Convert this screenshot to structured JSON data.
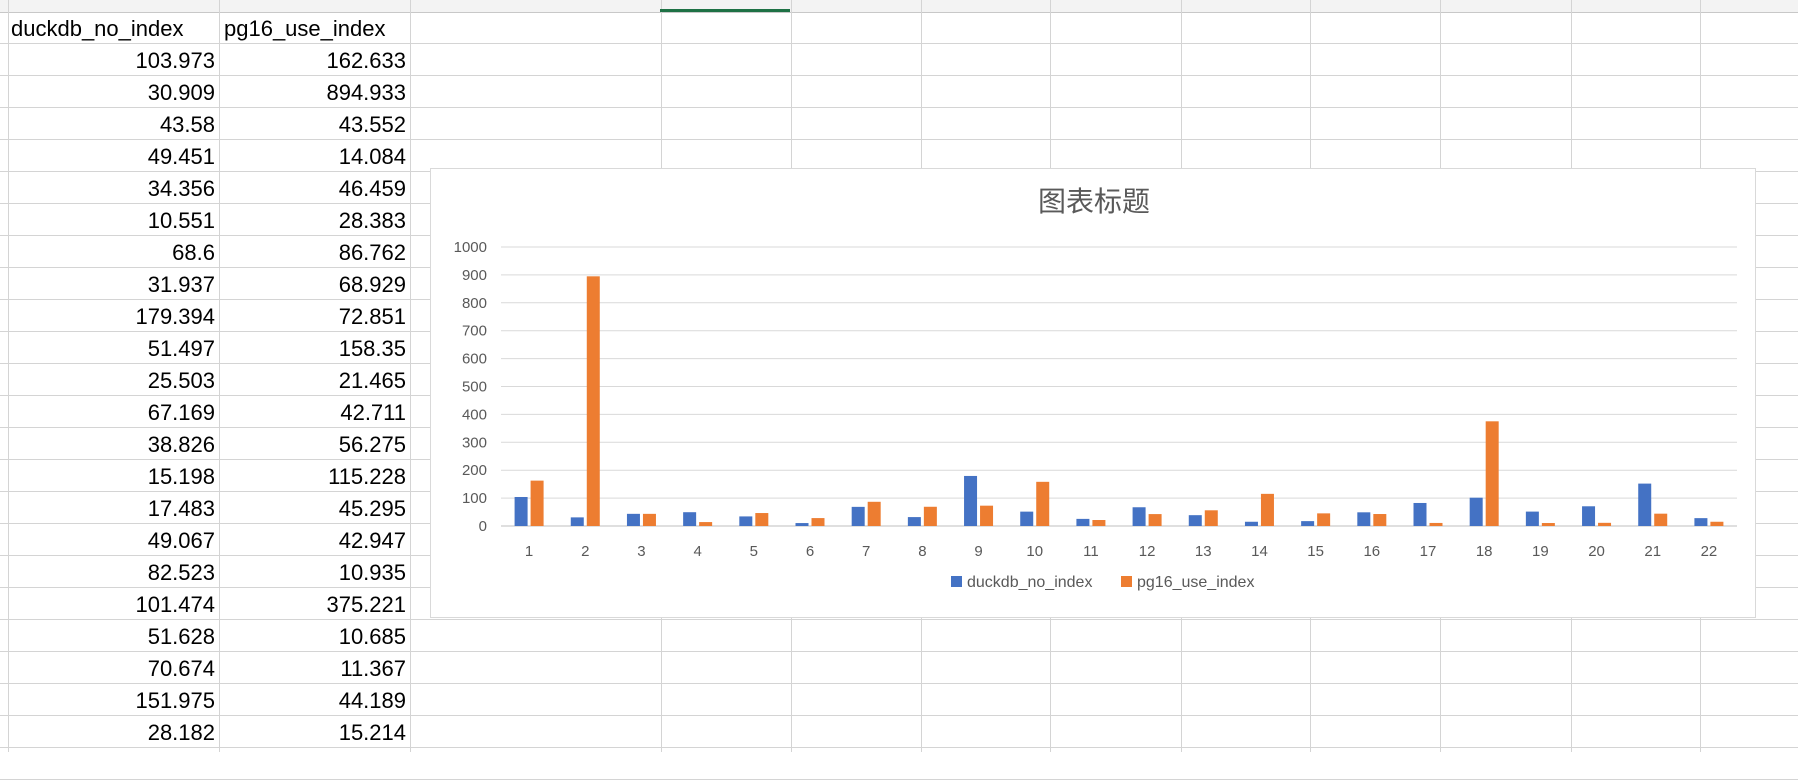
{
  "sheet": {
    "headers": [
      "duckdb_no_index",
      "pg16_use_index"
    ],
    "rows": [
      [
        "103.973",
        "162.633"
      ],
      [
        "30.909",
        "894.933"
      ],
      [
        "43.58",
        "43.552"
      ],
      [
        "49.451",
        "14.084"
      ],
      [
        "34.356",
        "46.459"
      ],
      [
        "10.551",
        "28.383"
      ],
      [
        "68.6",
        "86.762"
      ],
      [
        "31.937",
        "68.929"
      ],
      [
        "179.394",
        "72.851"
      ],
      [
        "51.497",
        "158.35"
      ],
      [
        "25.503",
        "21.465"
      ],
      [
        "67.169",
        "42.711"
      ],
      [
        "38.826",
        "56.275"
      ],
      [
        "15.198",
        "115.228"
      ],
      [
        "17.483",
        "45.295"
      ],
      [
        "49.067",
        "42.947"
      ],
      [
        "82.523",
        "10.935"
      ],
      [
        "101.474",
        "375.221"
      ],
      [
        "51.628",
        "10.685"
      ],
      [
        "70.674",
        "11.367"
      ],
      [
        "151.975",
        "44.189"
      ],
      [
        "28.182",
        "15.214"
      ]
    ]
  },
  "chart_data": {
    "type": "bar",
    "title": "图表标题",
    "categories": [
      "1",
      "2",
      "3",
      "4",
      "5",
      "6",
      "7",
      "8",
      "9",
      "10",
      "11",
      "12",
      "13",
      "14",
      "15",
      "16",
      "17",
      "18",
      "19",
      "20",
      "21",
      "22"
    ],
    "series": [
      {
        "name": "duckdb_no_index",
        "color": "#4472c4",
        "values": [
          103.973,
          30.909,
          43.58,
          49.451,
          34.356,
          10.551,
          68.6,
          31.937,
          179.394,
          51.497,
          25.503,
          67.169,
          38.826,
          15.198,
          17.483,
          49.067,
          82.523,
          101.474,
          51.628,
          70.674,
          151.975,
          28.182
        ]
      },
      {
        "name": "pg16_use_index",
        "color": "#ed7d31",
        "values": [
          162.633,
          894.933,
          43.552,
          14.084,
          46.459,
          28.383,
          86.762,
          68.929,
          72.851,
          158.35,
          21.465,
          42.711,
          56.275,
          115.228,
          45.295,
          42.947,
          10.935,
          375.221,
          10.685,
          11.367,
          44.189,
          15.214
        ]
      }
    ],
    "yticks": [
      "0",
      "100",
      "200",
      "300",
      "400",
      "500",
      "600",
      "700",
      "800",
      "900",
      "1000"
    ],
    "ylim": [
      0,
      1000
    ],
    "grid": true,
    "legend": "bottom"
  }
}
